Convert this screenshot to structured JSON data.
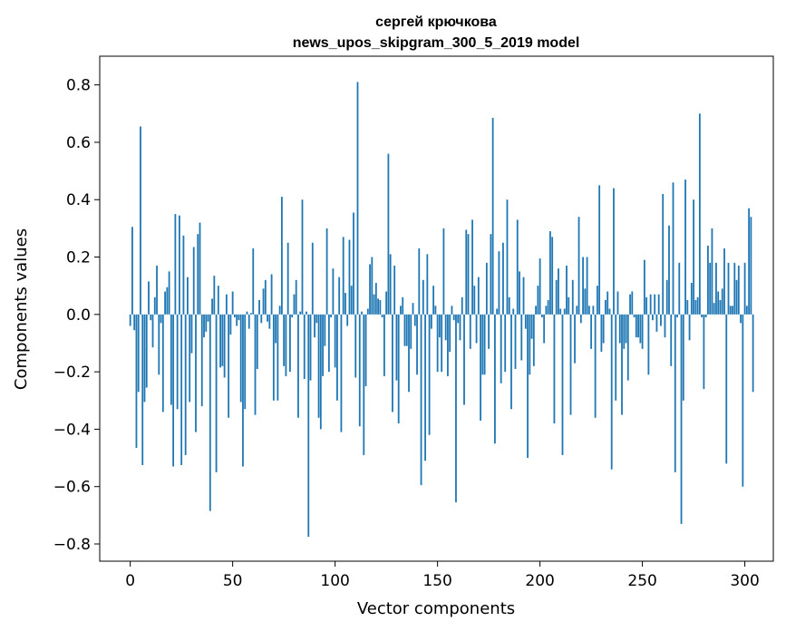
{
  "chart_data": {
    "type": "bar",
    "title": "сергей крючкова",
    "subtitle": "news_upos_skipgram_300_5_2019 model",
    "xlabel": "Vector components",
    "ylabel": "Components values",
    "xlim": [
      -14.9,
      313.9
    ],
    "ylim": [
      -0.86,
      0.9
    ],
    "xticks": [
      0,
      50,
      100,
      150,
      200,
      250,
      300
    ],
    "xtick_labels": [
      "0",
      "50",
      "100",
      "150",
      "200",
      "250",
      "300"
    ],
    "yticks": [
      -0.8,
      -0.6,
      -0.4,
      -0.2,
      0.0,
      0.2,
      0.4,
      0.6,
      0.8
    ],
    "ytick_labels": [
      "−0.8",
      "−0.6",
      "−0.4",
      "−0.2",
      "0.0",
      "0.2",
      "0.4",
      "0.6",
      "0.8"
    ],
    "bar_color": "#1f77b4",
    "series": [
      {
        "name": "components",
        "values": [
          -0.04,
          0.305,
          -0.055,
          -0.465,
          -0.27,
          0.655,
          -0.525,
          -0.305,
          -0.255,
          0.115,
          -0.02,
          -0.115,
          0.06,
          0.17,
          -0.21,
          -0.03,
          -0.34,
          0.08,
          0.095,
          0.15,
          -0.315,
          -0.53,
          0.35,
          -0.33,
          0.345,
          -0.525,
          0.275,
          -0.49,
          0.13,
          -0.305,
          -0.135,
          0.235,
          -0.41,
          0.28,
          0.32,
          -0.32,
          -0.08,
          -0.06,
          -0.025,
          -0.685,
          0.055,
          0.135,
          -0.55,
          0.1,
          -0.185,
          -0.18,
          -0.22,
          0.07,
          -0.36,
          -0.07,
          0.08,
          -0.01,
          -0.04,
          -0.02,
          -0.305,
          -0.53,
          -0.33,
          0.01,
          -0.05,
          0.005,
          0.23,
          -0.35,
          -0.19,
          0.05,
          -0.03,
          0.09,
          0.12,
          -0.025,
          -0.05,
          0.14,
          -0.3,
          -0.1,
          -0.3,
          0.03,
          0.41,
          -0.18,
          -0.215,
          0.25,
          -0.2,
          -0.01,
          0.07,
          0.12,
          -0.36,
          0.01,
          0.4,
          -0.225,
          0.01,
          -0.775,
          -0.23,
          0.25,
          -0.08,
          -0.03,
          -0.36,
          -0.4,
          -0.215,
          -0.11,
          0.3,
          -0.2,
          -0.01,
          0.16,
          -0.185,
          -0.3,
          0.13,
          -0.41,
          0.27,
          0.075,
          -0.04,
          0.26,
          0.1,
          0.355,
          -0.22,
          0.81,
          -0.39,
          0.01,
          -0.49,
          -0.25,
          0.02,
          0.175,
          0.2,
          0.07,
          0.11,
          0.055,
          0.05,
          -0.01,
          -0.215,
          0.08,
          0.56,
          0.21,
          -0.34,
          0.17,
          -0.23,
          -0.38,
          0.03,
          0.06,
          -0.11,
          -0.11,
          -0.27,
          -0.12,
          0.04,
          -0.04,
          -0.21,
          0.23,
          -0.595,
          0.12,
          -0.51,
          0.21,
          -0.42,
          -0.05,
          0.1,
          0.03,
          -0.2,
          -0.08,
          -0.2,
          0.3,
          -0.09,
          -0.215,
          -0.13,
          0.03,
          -0.02,
          -0.655,
          -0.03,
          -0.09,
          0.06,
          -0.315,
          0.295,
          0.28,
          -0.12,
          0.33,
          0.1,
          -0.1,
          0.13,
          -0.37,
          -0.21,
          -0.21,
          0.18,
          -0.12,
          0.28,
          0.685,
          -0.45,
          0.02,
          0.22,
          -0.24,
          0.25,
          -0.2,
          0.4,
          0.06,
          -0.33,
          0.02,
          -0.19,
          0.33,
          0.15,
          -0.16,
          0.13,
          -0.05,
          -0.5,
          -0.21,
          -0.085,
          -0.18,
          0.03,
          0.1,
          0.195,
          -0.01,
          -0.1,
          0.03,
          0.05,
          0.29,
          0.27,
          -0.38,
          0.12,
          0.16,
          0.02,
          -0.49,
          0.02,
          0.17,
          0.06,
          -0.35,
          0.12,
          -0.17,
          0.03,
          0.34,
          -0.03,
          0.2,
          0.09,
          0.2,
          0.03,
          -0.12,
          0.03,
          -0.36,
          0.1,
          0.45,
          -0.13,
          -0.1,
          0.05,
          0.08,
          0.02,
          -0.54,
          0.44,
          -0.3,
          0.08,
          -0.1,
          -0.35,
          -0.12,
          -0.1,
          -0.23,
          0.07,
          0.08,
          -0.01,
          -0.08,
          -0.08,
          -0.1,
          -0.12,
          0.19,
          0.06,
          -0.21,
          0.07,
          -0.02,
          0.07,
          -0.06,
          0.07,
          -0.04,
          0.42,
          -0.08,
          0.12,
          0.31,
          -0.18,
          0.46,
          -0.55,
          -0.01,
          0.18,
          -0.73,
          -0.3,
          0.47,
          0.05,
          -0.09,
          0.11,
          0.4,
          0.05,
          0.06,
          0.7,
          -0.01,
          -0.26,
          -0.01,
          0.24,
          0.18,
          0.3,
          0.04,
          0.18,
          0.08,
          0.05,
          0.09,
          0.23,
          -0.52,
          0.18,
          0.03,
          0.03,
          0.18,
          0.12,
          0.17,
          -0.03,
          -0.6,
          0.18,
          0.03,
          0.37,
          0.34,
          -0.27
        ]
      }
    ]
  }
}
